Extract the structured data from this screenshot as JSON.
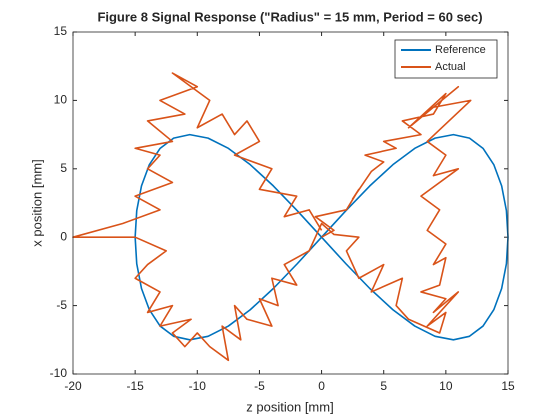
{
  "chart_data": {
    "type": "line",
    "title": "Figure 8 Signal Response (\"Radius\" = 15 mm, Period = 60 sec)",
    "x_label": "z position [mm]",
    "y_label": "x position [mm]",
    "xlim": [
      -20,
      15
    ],
    "xticks": [
      -20,
      -15,
      -10,
      -5,
      0,
      5,
      10,
      15
    ],
    "ylim": [
      -10,
      15
    ],
    "yticks": [
      -10,
      -5,
      0,
      5,
      10,
      15
    ],
    "legend": "northeast",
    "series": [
      {
        "name": "Reference",
        "color": "#0072bd",
        "x": [
          0,
          1.958,
          3.882,
          5.74,
          7.5,
          9.132,
          10.607,
          11.901,
          12.99,
          13.858,
          14.489,
          14.872,
          15,
          14.872,
          14.489,
          13.858,
          12.99,
          11.901,
          10.607,
          9.132,
          7.5,
          5.74,
          3.882,
          1.958,
          0,
          -1.958,
          -3.882,
          -5.74,
          -7.5,
          -9.132,
          -10.607,
          -11.901,
          -12.99,
          -13.858,
          -14.489,
          -14.872,
          -15,
          -14.872,
          -14.489,
          -13.858,
          -12.99,
          -11.901,
          -10.607,
          -9.132,
          -7.5,
          -5.74,
          -3.882,
          -1.958,
          0
        ],
        "values": [
          0,
          1.941,
          3.75,
          5.303,
          6.495,
          7.244,
          7.5,
          7.244,
          6.495,
          5.303,
          3.75,
          1.941,
          0,
          -1.941,
          -3.75,
          -5.303,
          -6.495,
          -7.244,
          -7.5,
          -7.244,
          -6.495,
          -5.303,
          -3.75,
          -1.941,
          0,
          1.941,
          3.75,
          5.303,
          6.495,
          7.244,
          7.5,
          7.244,
          6.495,
          5.303,
          3.75,
          1.941,
          0,
          -1.941,
          -3.75,
          -5.303,
          -6.495,
          -7.244,
          -7.5,
          -7.244,
          -6.495,
          -5.303,
          -3.75,
          -1.941,
          0
        ]
      },
      {
        "name": "Actual",
        "color": "#d95319",
        "x": [
          0,
          1,
          -0.5,
          2,
          3,
          2.5,
          4,
          5,
          3.5,
          6,
          5,
          8,
          6.5,
          9,
          10,
          7,
          11,
          9,
          12,
          8.5,
          10,
          9,
          11,
          8,
          9.5,
          8.5,
          10,
          9,
          10,
          9.5,
          8,
          10,
          9,
          11,
          8.5,
          10,
          9.5,
          7,
          6,
          6.5,
          4,
          5,
          3,
          2,
          3,
          1,
          0,
          -1,
          -3,
          -2,
          -4,
          -3.5,
          -5,
          -4,
          -6,
          -7,
          -6.5,
          -8,
          -7.5,
          -9,
          -10,
          -11,
          -12,
          -10.5,
          -13,
          -12,
          -14,
          -13,
          -15,
          -14,
          -12.5,
          -15,
          -20,
          -16,
          -13,
          -15,
          -12,
          -14,
          -13,
          -15,
          -12,
          -14,
          -11,
          -13,
          -10,
          -12,
          -9,
          -10,
          -8,
          -7,
          -6,
          -5,
          -7,
          -4,
          -5,
          -2,
          -3,
          -1,
          0
        ],
        "values": [
          0,
          0.5,
          1.5,
          2,
          3.5,
          2.8,
          4.8,
          5.5,
          6,
          6.5,
          7,
          7.5,
          8.5,
          9,
          10.5,
          8,
          11,
          9.5,
          10,
          7,
          6,
          4.5,
          5,
          3,
          2,
          0.5,
          -0.5,
          -2,
          -1.5,
          -3.5,
          -4,
          -4.5,
          -5.5,
          -4,
          -6.5,
          -5.5,
          -7,
          -6,
          -5,
          -3,
          -4,
          -2,
          -3,
          -1,
          0,
          0.2,
          1,
          -1,
          -2,
          -3.5,
          -3,
          -5,
          -4.5,
          -6.5,
          -6,
          -5,
          -7.5,
          -6.5,
          -9,
          -8,
          -7,
          -8,
          -7,
          -6,
          -6.5,
          -5,
          -5.5,
          -4,
          -3,
          -2,
          -1,
          0,
          0,
          1,
          2,
          3,
          4,
          5,
          6,
          6.5,
          7,
          8.5,
          9,
          10,
          11,
          12,
          10,
          8,
          9,
          7.5,
          8.5,
          7,
          6,
          5,
          3.5,
          3,
          1.5,
          2,
          0.5
        ]
      }
    ]
  }
}
